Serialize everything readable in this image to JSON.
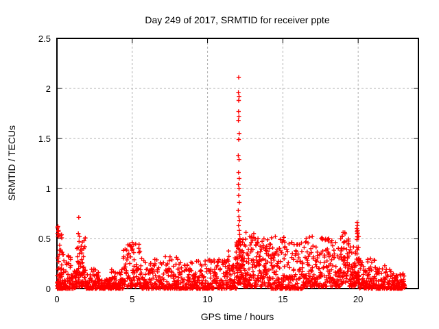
{
  "page": {
    "background": "#ffffff"
  },
  "chart_data": {
    "type": "scatter",
    "title": "Day 249 of 2017, SRMTID for receiver ppte",
    "xlabel": "GPS time / hours",
    "ylabel": "SRMTID / TECUs",
    "xlim": [
      0,
      24
    ],
    "ylim": [
      0,
      2.5
    ],
    "xticks": [
      0,
      5,
      10,
      15,
      20
    ],
    "yticks": [
      0,
      0.5,
      1,
      1.5,
      2,
      2.5
    ],
    "grid": true,
    "grid_style": "dashed",
    "grid_color": "#b0b0b0",
    "legend": "none",
    "marker": "plus",
    "marker_color": "#ff0000",
    "series_name": "SRMTID",
    "data_x_start": 0.02,
    "data_x_end": 23.1,
    "peak_value": 2.11,
    "peak_time": 12.07,
    "seed": 249,
    "spike_points": [
      [
        12.07,
        2.11
      ],
      [
        12.05,
        1.96
      ],
      [
        12.09,
        1.92
      ],
      [
        12.07,
        1.88
      ],
      [
        12.06,
        1.77
      ],
      [
        12.08,
        1.72
      ],
      [
        12.05,
        1.68
      ],
      [
        12.1,
        1.55
      ],
      [
        12.07,
        1.49
      ],
      [
        12.04,
        1.33
      ],
      [
        12.09,
        1.29
      ],
      [
        12.06,
        1.16
      ],
      [
        12.1,
        1.1
      ],
      [
        12.05,
        1.04
      ],
      [
        12.09,
        1.0
      ],
      [
        12.07,
        0.93
      ],
      [
        12.11,
        0.86
      ],
      [
        12.04,
        0.78
      ],
      [
        12.08,
        0.72
      ],
      [
        12.12,
        0.68
      ],
      [
        12.06,
        0.63
      ],
      [
        12.1,
        0.58
      ],
      [
        12.13,
        0.54
      ],
      [
        12.15,
        0.5
      ],
      [
        12.17,
        0.47
      ],
      [
        12.19,
        0.44
      ],
      [
        1.45,
        0.71
      ],
      [
        1.42,
        0.55
      ],
      [
        1.5,
        0.52
      ],
      [
        0.07,
        0.62
      ],
      [
        0.1,
        0.58
      ],
      [
        0.05,
        0.55
      ],
      [
        0.13,
        0.53
      ],
      [
        5.0,
        0.46
      ],
      [
        5.1,
        0.44
      ],
      [
        4.9,
        0.42
      ],
      [
        12.55,
        0.56
      ],
      [
        12.8,
        0.52
      ],
      [
        13.35,
        0.5
      ],
      [
        14.5,
        0.52
      ],
      [
        15.05,
        0.48
      ],
      [
        15.6,
        0.46
      ],
      [
        16.55,
        0.5
      ],
      [
        16.95,
        0.52
      ],
      [
        17.55,
        0.5
      ],
      [
        18.05,
        0.5
      ],
      [
        18.5,
        0.46
      ],
      [
        19.0,
        0.56
      ],
      [
        18.95,
        0.52
      ],
      [
        19.93,
        0.66
      ],
      [
        19.95,
        0.63
      ],
      [
        19.91,
        0.6
      ],
      [
        19.96,
        0.58
      ],
      [
        19.94,
        0.55
      ],
      [
        19.97,
        0.52
      ],
      [
        19.92,
        0.49
      ]
    ],
    "band_segments": [
      [
        0.02,
        0.35,
        70,
        0.0,
        0.62,
        2.2
      ],
      [
        0.35,
        1.0,
        60,
        0.0,
        0.35,
        2.5
      ],
      [
        1.0,
        1.3,
        30,
        0.0,
        0.18,
        2.0
      ],
      [
        1.3,
        1.9,
        70,
        0.02,
        0.52,
        2.0
      ],
      [
        1.9,
        2.9,
        80,
        0.0,
        0.2,
        2.2
      ],
      [
        2.9,
        3.6,
        60,
        0.0,
        0.1,
        2.0
      ],
      [
        3.6,
        4.4,
        70,
        0.0,
        0.2,
        2.2
      ],
      [
        4.4,
        5.6,
        90,
        0.02,
        0.46,
        2.0
      ],
      [
        5.6,
        7.2,
        110,
        0.0,
        0.3,
        2.6
      ],
      [
        7.2,
        8.2,
        80,
        0.0,
        0.32,
        2.4
      ],
      [
        8.2,
        9.7,
        110,
        0.0,
        0.28,
        2.4
      ],
      [
        9.7,
        11.2,
        110,
        0.0,
        0.3,
        2.4
      ],
      [
        11.2,
        11.9,
        60,
        0.0,
        0.38,
        2.2
      ],
      [
        11.9,
        12.35,
        70,
        0.05,
        0.5,
        1.6
      ],
      [
        12.35,
        13.1,
        80,
        0.02,
        0.56,
        2.0
      ],
      [
        13.1,
        14.2,
        100,
        0.02,
        0.5,
        2.2
      ],
      [
        14.2,
        15.3,
        100,
        0.0,
        0.52,
        2.2
      ],
      [
        15.3,
        16.4,
        90,
        0.0,
        0.48,
        2.3
      ],
      [
        16.4,
        17.6,
        100,
        0.02,
        0.52,
        2.2
      ],
      [
        17.6,
        18.8,
        100,
        0.02,
        0.5,
        2.2
      ],
      [
        18.8,
        19.4,
        60,
        0.05,
        0.56,
        1.9
      ],
      [
        19.4,
        19.85,
        45,
        0.02,
        0.42,
        2.0
      ],
      [
        19.85,
        20.1,
        35,
        0.05,
        0.62,
        1.5
      ],
      [
        20.1,
        21.1,
        80,
        0.0,
        0.3,
        2.3
      ],
      [
        21.1,
        22.2,
        80,
        0.0,
        0.24,
        2.4
      ],
      [
        22.2,
        23.1,
        80,
        0.0,
        0.15,
        2.0
      ]
    ]
  }
}
